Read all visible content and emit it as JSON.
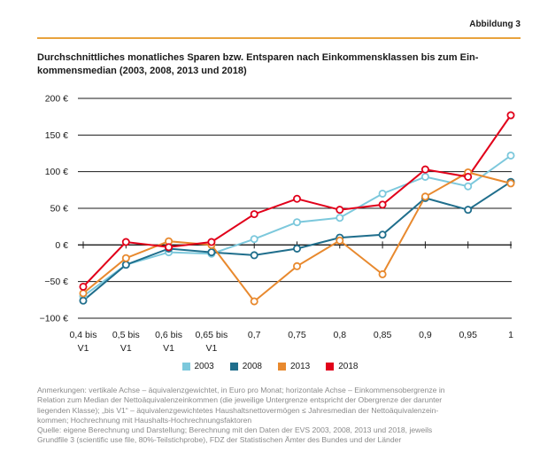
{
  "figure_label": "Abbildung 3",
  "title_line1": "Durchschnittliches monatliches Sparen bzw. Entsparen nach Einkommensklassen bis zum Ein-",
  "title_line2": "kommensmedian (2003, 2008, 2013 und 2018)",
  "chart_data": {
    "type": "line",
    "title": "Durchschnittliches monatliches Sparen bzw. Entsparen nach Einkommensklassen bis zum Einkommensmedian (2003, 2008, 2013 und 2018)",
    "categories": [
      [
        "0,4 bis",
        "V1"
      ],
      [
        "0,5 bis",
        "V1"
      ],
      [
        "0,6 bis",
        "V1"
      ],
      [
        "0,65 bis",
        "V1"
      ],
      [
        "0,7"
      ],
      [
        "0,75"
      ],
      [
        "0,8"
      ],
      [
        "0,85"
      ],
      [
        "0,9"
      ],
      [
        "0,95"
      ],
      [
        "1"
      ]
    ],
    "yticks": [
      "200 €",
      "150 €",
      "100 €",
      "50 €",
      "0 €",
      "−50 €",
      "−100 €"
    ],
    "ylim": [
      -100,
      200
    ],
    "ytick_values": [
      200,
      150,
      100,
      50,
      0,
      -50,
      -100
    ],
    "grid": true,
    "legend_position": "bottom",
    "series": [
      {
        "name": "2003",
        "color": "#7cc8dc",
        "values": [
          -70,
          -27,
          -10,
          -12,
          8,
          31,
          37,
          70,
          93,
          80,
          122
        ]
      },
      {
        "name": "2008",
        "color": "#1f6e8c",
        "values": [
          -76,
          -27,
          -5,
          -10,
          -14,
          -5,
          10,
          14,
          64,
          48,
          86
        ]
      },
      {
        "name": "2013",
        "color": "#e8892e",
        "values": [
          -66,
          -18,
          5,
          0,
          -77,
          -29,
          6,
          -40,
          66,
          99,
          84
        ]
      },
      {
        "name": "2018",
        "color": "#e1001a",
        "values": [
          -57,
          4,
          -3,
          4,
          42,
          63,
          48,
          55,
          103,
          93,
          177
        ]
      }
    ]
  },
  "notes": {
    "line1": "Anmerkungen: vertikale Achse – äquivalenzgewichtet, in Euro pro Monat; horizontale Achse – Einkommensobergrenze in",
    "line2": "Relation zum Median der Nettoäquivalenzeinkommen (die jeweilige Untergrenze entspricht der Obergrenze der darunter",
    "line3": "liegenden Klasse); „bis V1“ – äquivalenzgewichtetes Haushaltsnettovermögen ≤ Jahresmedian der Nettoäquivalenzein-",
    "line4": "kommen; Hochrechnung mit Haushalts-Hochrechnungsfaktoren",
    "line5": "Quelle: eigene Berechnung und Darstellung; Berechnung mit den Daten der EVS 2003, 2008, 2013 und 2018, jeweils",
    "line6": "Grundfile 3 (scientific use file, 80%-Teilstichprobe), FDZ der Statistischen Ämter des Bundes und der Länder"
  }
}
